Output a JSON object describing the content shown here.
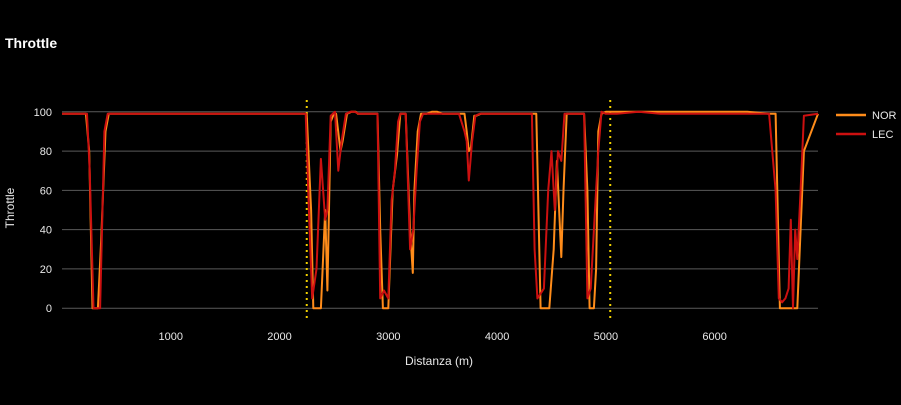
{
  "chart_data": {
    "type": "line",
    "title": "Throttle",
    "xlabel": "Distanza (m)",
    "ylabel": "Throttle",
    "xlim": [
      0,
      6950
    ],
    "ylim": [
      -6,
      106
    ],
    "xticks": [
      1000,
      2000,
      3000,
      4000,
      5000,
      6000
    ],
    "yticks": [
      0,
      20,
      40,
      60,
      80,
      100
    ],
    "grid": "horizontal",
    "legend_position": "right",
    "vlines": [
      2250,
      5040
    ],
    "series": [
      {
        "name": "NOR",
        "color": "#ff8c1a",
        "x": [
          0,
          220,
          250,
          280,
          300,
          330,
          360,
          400,
          430,
          2250,
          2290,
          2310,
          2340,
          2380,
          2420,
          2440,
          2470,
          2500,
          2520,
          2560,
          2580,
          2620,
          2660,
          2700,
          2720,
          2740,
          2760,
          2900,
          2925,
          2950,
          2975,
          3000,
          3040,
          3080,
          3110,
          3160,
          3200,
          3225,
          3240,
          3270,
          3300,
          3350,
          3400,
          3450,
          3500,
          3700,
          3720,
          3740,
          3760,
          3790,
          3810,
          3850,
          3900,
          4000,
          4100,
          4200,
          4300,
          4330,
          4360,
          4400,
          4440,
          4480,
          4520,
          4550,
          4590,
          4610,
          4640,
          4680,
          4730,
          4800,
          4830,
          4850,
          4870,
          4890,
          4910,
          4930,
          4960,
          5000,
          5100,
          5300,
          5600,
          5800,
          6000,
          6300,
          6500,
          6560,
          6600,
          6640,
          6680,
          6720,
          6760,
          6790,
          6820,
          6950
        ],
        "values": [
          99,
          99,
          80,
          0,
          0,
          0,
          35,
          90,
          99,
          99,
          50,
          0,
          0,
          0,
          50,
          9,
          95,
          99,
          99,
          80,
          85,
          99,
          100,
          100,
          99,
          99,
          99,
          99,
          40,
          0,
          0,
          0,
          60,
          78,
          99,
          99,
          40,
          18,
          60,
          90,
          99,
          99,
          100,
          100,
          99,
          99,
          90,
          80,
          82,
          98,
          98,
          99,
          99,
          99,
          99,
          99,
          99,
          99,
          99,
          0,
          0,
          0,
          30,
          75,
          26,
          60,
          99,
          99,
          99,
          99,
          60,
          0,
          0,
          0,
          20,
          90,
          99,
          100,
          100,
          100,
          100,
          100,
          100,
          100,
          99,
          99,
          0,
          0,
          0,
          0,
          0,
          40,
          80,
          99
        ]
      },
      {
        "name": "LEC",
        "color": "#cc1010",
        "x": [
          0,
          230,
          255,
          290,
          350,
          390,
          420,
          2240,
          2270,
          2300,
          2340,
          2380,
          2420,
          2440,
          2470,
          2510,
          2540,
          2570,
          2610,
          2650,
          2690,
          2730,
          2760,
          2900,
          2925,
          2960,
          3000,
          3030,
          3060,
          3090,
          3110,
          3160,
          3200,
          3230,
          3260,
          3290,
          3320,
          3400,
          3500,
          3650,
          3700,
          3720,
          3740,
          3770,
          3800,
          3840,
          3900,
          4000,
          4200,
          4320,
          4345,
          4370,
          4430,
          4470,
          4500,
          4530,
          4560,
          4590,
          4620,
          4650,
          4680,
          4720,
          4800,
          4830,
          4860,
          4900,
          4930,
          4960,
          5000,
          5100,
          5300,
          5500,
          5800,
          6000,
          6300,
          6500,
          6560,
          6590,
          6620,
          6650,
          6680,
          6700,
          6720,
          6740,
          6760,
          6790,
          6820,
          6950
        ],
        "values": [
          99,
          99,
          70,
          0,
          0,
          90,
          99,
          99,
          50,
          5,
          20,
          76,
          45,
          50,
          98,
          100,
          70,
          85,
          99,
          100,
          100,
          99,
          99,
          99,
          5,
          9,
          5,
          55,
          70,
          95,
          99,
          99,
          30,
          40,
          70,
          95,
          99,
          99,
          99,
          99,
          90,
          85,
          65,
          85,
          98,
          99,
          99,
          99,
          99,
          99,
          30,
          5,
          10,
          60,
          80,
          50,
          80,
          75,
          99,
          99,
          99,
          99,
          99,
          5,
          10,
          50,
          80,
          100,
          99,
          99,
          100,
          99,
          99,
          99,
          99,
          99,
          60,
          5,
          3,
          5,
          10,
          45,
          0,
          40,
          25,
          60,
          98,
          99
        ]
      }
    ]
  }
}
